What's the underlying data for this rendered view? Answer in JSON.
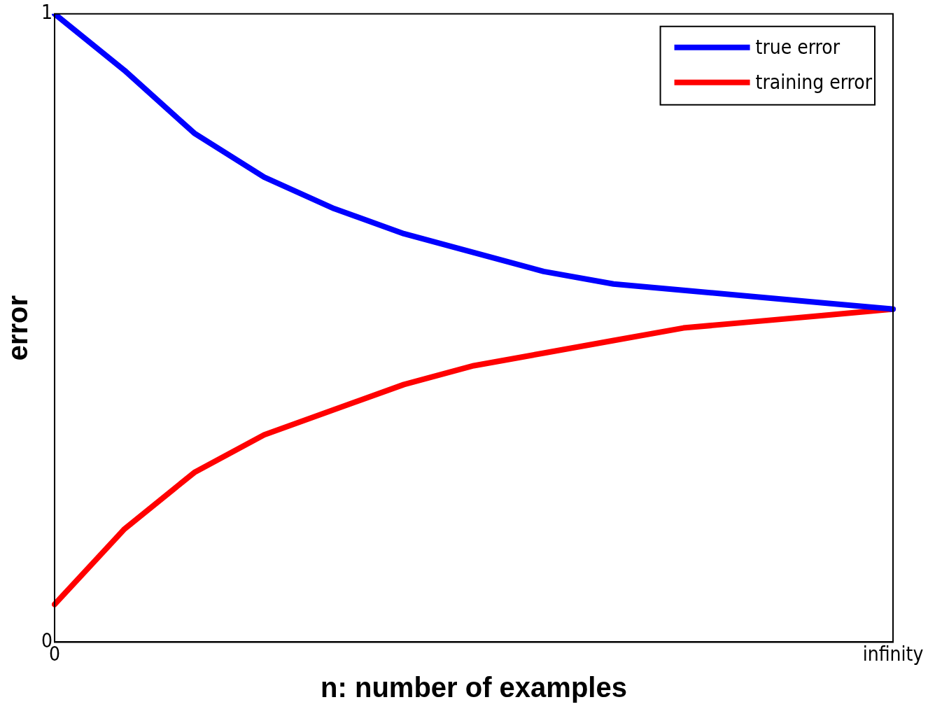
{
  "chart_data": {
    "type": "line",
    "xlabel": "n: number of examples",
    "ylabel": "error",
    "categories": [
      "0",
      null,
      null,
      null,
      null,
      null,
      null,
      null,
      null,
      null,
      null,
      null,
      "infinity"
    ],
    "series": [
      {
        "name": "true error",
        "color": "#0000ff",
        "values": [
          1.0,
          0.91,
          0.81,
          0.74,
          0.69,
          0.65,
          0.62,
          0.59,
          0.57,
          0.56,
          0.55,
          0.54,
          0.53
        ]
      },
      {
        "name": "training error",
        "color": "#ff0000",
        "values": [
          0.06,
          0.18,
          0.27,
          0.33,
          0.37,
          0.41,
          0.44,
          0.46,
          0.48,
          0.5,
          0.51,
          0.52,
          0.53
        ]
      }
    ],
    "ylim": [
      0,
      1
    ],
    "yticks": [
      0,
      1
    ],
    "grid": false,
    "legend": "top right",
    "marker": "none",
    "line_style": "solid"
  }
}
